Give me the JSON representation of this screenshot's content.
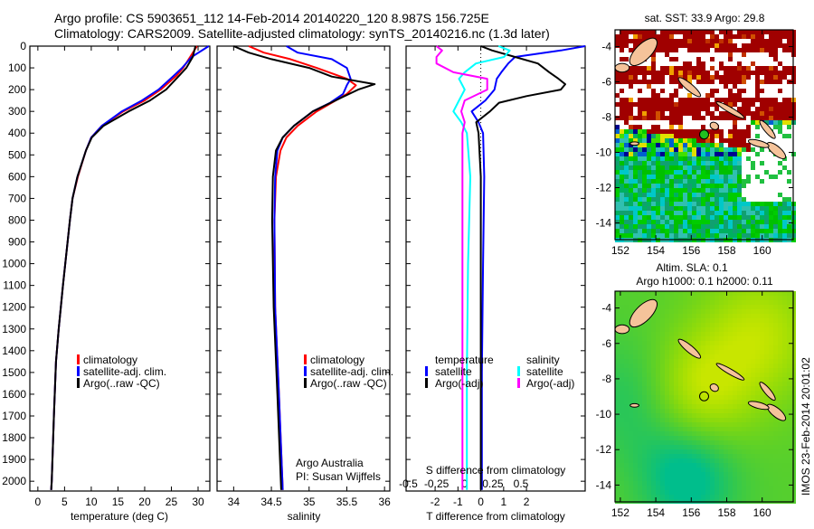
{
  "title": {
    "line1": "Argo profile: CS 5903651_112 14-Feb-2014 20140220_120 8.987S 156.725E",
    "line2": "Climatology: CARS2009. Satellite-adjusted climatology: synTS_20140216.nc (1.3d later)"
  },
  "colors": {
    "climatology": "#ff0000",
    "satellite": "#0000ff",
    "argo": "#000000",
    "sat_sal": "#00ffff",
    "argo_sal": "#ff00ff"
  },
  "chart_data": [
    {
      "type": "line",
      "xlabel": "temperature (deg C)",
      "ylabel": "",
      "xlim": [
        -1.5,
        32.2
      ],
      "ylim": [
        2045,
        0
      ],
      "xticks": [
        "0",
        "5",
        "10",
        "15",
        "20",
        "25",
        "30"
      ],
      "yticks": [
        "0",
        "100",
        "200",
        "300",
        "400",
        "500",
        "600",
        "700",
        "800",
        "900",
        "1000",
        "1100",
        "1200",
        "1300",
        "1400",
        "1500",
        "1600",
        "1700",
        "1800",
        "1900",
        "2000"
      ],
      "legend": [
        "climatology",
        "satellite-adj. clim.",
        "Argo(..raw -QC)"
      ],
      "series": [
        {
          "name": "climatology",
          "depth": [
            0,
            50,
            100,
            135,
            200,
            250,
            300,
            366,
            420,
            480,
            600,
            700,
            800,
            940,
            1100,
            1300,
            1450,
            1700,
            2000,
            2040
          ],
          "values": [
            29.8,
            28.5,
            27.2,
            26,
            23,
            20,
            16,
            12,
            10,
            9,
            7.5,
            6.5,
            6,
            5.4,
            4.7,
            3.9,
            3.4,
            3,
            2.6,
            2.5
          ]
        },
        {
          "name": "satellite-adj. clim.",
          "depth": [
            0,
            50,
            100,
            135,
            200,
            250,
            300,
            366,
            420,
            480,
            600,
            700,
            800,
            940,
            1100,
            1300,
            1450,
            1700,
            2000,
            2040
          ],
          "values": [
            32,
            28.8,
            27,
            25.5,
            22.6,
            19.5,
            15.7,
            12,
            10,
            9,
            7.4,
            6.5,
            6,
            5.4,
            4.7,
            3.9,
            3.4,
            3,
            2.6,
            2.5
          ]
        },
        {
          "name": "Argo(..raw -QC)",
          "depth": [
            0,
            50,
            100,
            135,
            200,
            250,
            300,
            366,
            420,
            480,
            600,
            700,
            800,
            940,
            1100,
            1300,
            1450,
            1700,
            2000,
            2040
          ],
          "values": [
            29.5,
            29,
            27.8,
            26.5,
            24,
            21,
            17,
            12.3,
            10.1,
            9,
            7.4,
            6.5,
            6,
            5.4,
            4.7,
            3.9,
            3.4,
            3,
            2.6,
            2.5
          ]
        }
      ]
    },
    {
      "type": "line",
      "xlabel": "salinity",
      "xlim": [
        33.78,
        36.07
      ],
      "ylim": [
        2045,
        0
      ],
      "xticks": [
        "34",
        "34.5",
        "35",
        "35.5",
        "36"
      ],
      "legend": [
        "climatology",
        "satellite-adj. clim.",
        "Argo(..raw -QC)"
      ],
      "annotations": [
        "Argo Australia",
        "PI: Susan Wijffels"
      ],
      "series": [
        {
          "name": "climatology",
          "depth": [
            0,
            30,
            60,
            100,
            150,
            180,
            220,
            260,
            300,
            366,
            420,
            480,
            600,
            800,
            1200,
            1600,
            2040
          ],
          "values": [
            34.2,
            34.4,
            34.75,
            35.1,
            35.5,
            35.62,
            35.5,
            35.3,
            35.1,
            34.85,
            34.7,
            34.62,
            34.56,
            34.54,
            34.55,
            34.6,
            34.65
          ]
        },
        {
          "name": "satellite-adj. clim.",
          "depth": [
            0,
            30,
            60,
            100,
            150,
            180,
            220,
            260,
            300,
            366,
            420,
            480,
            600,
            800,
            1200,
            1600,
            2040
          ],
          "values": [
            34.7,
            34.85,
            35.3,
            35.5,
            35.55,
            35.5,
            35.45,
            35.28,
            35.05,
            34.8,
            34.65,
            34.58,
            34.55,
            34.54,
            34.55,
            34.6,
            34.65
          ]
        },
        {
          "name": "Argo(..raw -QC)",
          "depth": [
            0,
            30,
            60,
            100,
            140,
            175,
            200,
            250,
            300,
            366,
            420,
            480,
            600,
            800,
            1200,
            1600,
            2040
          ],
          "values": [
            34.0,
            34.2,
            34.5,
            35.0,
            35.3,
            35.87,
            35.65,
            35.35,
            35.05,
            34.8,
            34.65,
            34.56,
            34.52,
            34.51,
            34.53,
            34.58,
            34.63
          ]
        }
      ]
    },
    {
      "type": "line",
      "xlabel": "T difference from climatology",
      "x2label": "S difference from climatology",
      "xlim": [
        -3.27,
        4.57
      ],
      "x2lim": [
        -0.52,
        1.07
      ],
      "ylim": [
        2045,
        0
      ],
      "xticks": [
        "-2",
        "-1",
        "0",
        "1",
        "2"
      ],
      "x2ticks": [
        "-0.5",
        "-0.25",
        "0",
        "0.25",
        "0.5"
      ],
      "legend": {
        "temperature_header": "temperature",
        "salinity_header": "salinity",
        "satellite": "satellite",
        "argo": "Argo(-adj)"
      },
      "series": [
        {
          "name": "temperature satellite",
          "axis": "T",
          "depth": [
            0,
            20,
            50,
            80,
            120,
            150,
            200,
            250,
            300,
            350,
            400,
            600,
            1000,
            1500,
            2040
          ],
          "values": [
            4.6,
            3.5,
            1.5,
            1.2,
            0.9,
            0.7,
            0.6,
            0.2,
            -0.4,
            -0.1,
            0.1,
            0.15,
            0.1,
            0.05,
            0.05
          ]
        },
        {
          "name": "temperature Argo(-adj)",
          "axis": "T",
          "depth": [
            0,
            20,
            50,
            80,
            120,
            150,
            175,
            200,
            230,
            260,
            300,
            350,
            400,
            600,
            1000,
            1500,
            2040
          ],
          "values": [
            0,
            0.5,
            1.5,
            2.5,
            3,
            3.4,
            3.7,
            3.5,
            2,
            0.8,
            0.4,
            -0.2,
            -0.1,
            0,
            0,
            0,
            0
          ]
        },
        {
          "name": "salinity satellite",
          "axis": "S",
          "depth": [
            0,
            20,
            50,
            80,
            120,
            150,
            200,
            250,
            300,
            350,
            400,
            600,
            1000,
            1500,
            2040
          ],
          "values": [
            0.3,
            0.4,
            0.35,
            0.1,
            0,
            -0.05,
            0,
            -0.05,
            -0.1,
            -0.03,
            0.02,
            0.05,
            0.03,
            0.02,
            0.02
          ]
        },
        {
          "name": "salinity Argo(-adj)",
          "axis": "S",
          "depth": [
            0,
            20,
            50,
            80,
            120,
            150,
            200,
            250,
            300,
            350,
            400,
            600,
            1000,
            1500,
            2040
          ],
          "values": [
            -0.25,
            -0.2,
            -0.25,
            -0.25,
            -0.1,
            0.2,
            0.2,
            0,
            -0.03,
            0,
            -0.02,
            -0.02,
            -0.02,
            -0.02,
            -0.02
          ]
        }
      ]
    }
  ],
  "maps": {
    "sst": {
      "title": "sat. SST: 33.9 Argo: 29.8",
      "lon_ticks": [
        "152",
        "154",
        "156",
        "158",
        "160"
      ],
      "lat_ticks": [
        "-4",
        "-6",
        "-8",
        "-10",
        "-12",
        "-14"
      ],
      "argo_lon": 156.725,
      "argo_lat": -8.987
    },
    "sla": {
      "title1": "Altim. SLA: 0.1",
      "title2": "Argo h1000: 0.1 h2000: 0.11",
      "lon_ticks": [
        "152",
        "154",
        "156",
        "158",
        "160"
      ],
      "lat_ticks": [
        "-4",
        "-6",
        "-8",
        "-10",
        "-12",
        "-14"
      ],
      "argo_lon": 156.725,
      "argo_lat": -8.987
    }
  },
  "timestamp": "IMOS 23-Feb-2014 20:01:02"
}
